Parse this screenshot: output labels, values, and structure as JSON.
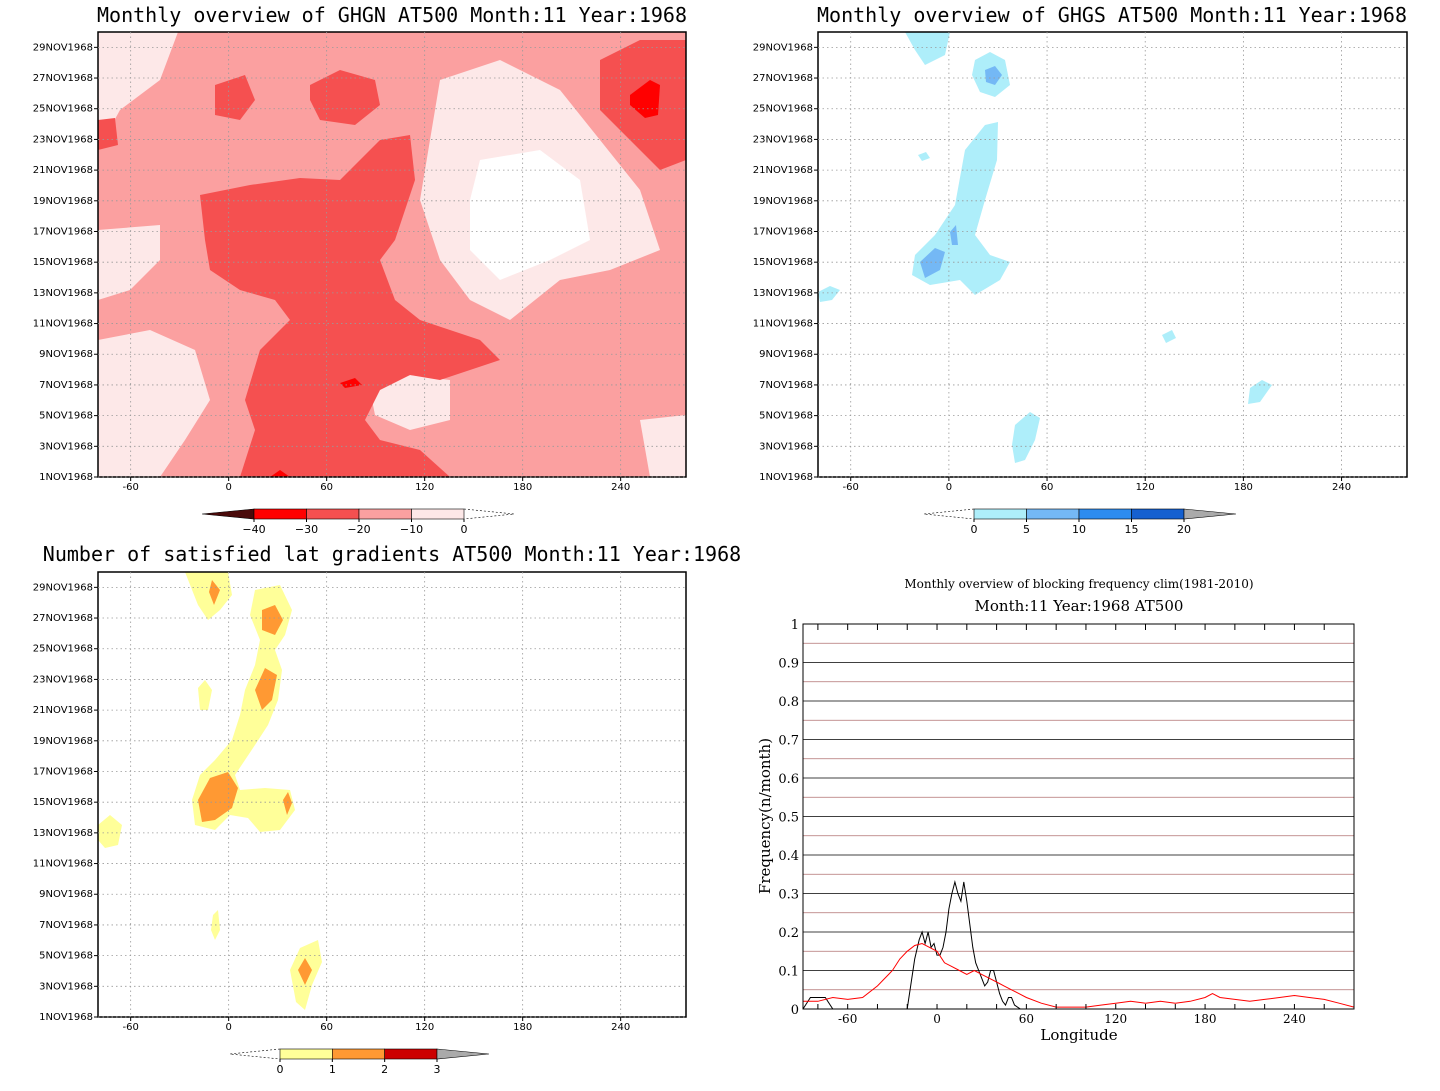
{
  "chart_data": [
    {
      "type": "heatmap",
      "title": "Monthly overview of GHGN AT500 Month:11 Year:1968",
      "x_ticks": [
        -60,
        0,
        60,
        120,
        180,
        240
      ],
      "y_ticks": [
        "1NOV1968",
        "3NOV1968",
        "5NOV1968",
        "7NOV1968",
        "9NOV1968",
        "11NOV1968",
        "13NOV1968",
        "15NOV1968",
        "17NOV1968",
        "19NOV1968",
        "21NOV1968",
        "23NOV1968",
        "25NOV1968",
        "27NOV1968",
        "29NOV1968"
      ],
      "xlim": [
        -80,
        280
      ],
      "ylim": [
        1,
        30
      ],
      "grid": true,
      "colorbar": {
        "labels": [
          "-40",
          "-30",
          "-20",
          "-10",
          "0"
        ],
        "colors": [
          "#4a0a0a",
          "#ff0000",
          "#f55050",
          "#fba0a0",
          "#fde8e8"
        ],
        "open_end_right": true
      }
    },
    {
      "type": "heatmap",
      "title": "Monthly overview of GHGS AT500 Month:11 Year:1968",
      "x_ticks": [
        -60,
        0,
        60,
        120,
        180,
        240
      ],
      "y_ticks": [
        "1NOV1968",
        "3NOV1968",
        "5NOV1968",
        "7NOV1968",
        "9NOV1968",
        "11NOV1968",
        "13NOV1968",
        "15NOV1968",
        "17NOV1968",
        "19NOV1968",
        "21NOV1968",
        "23NOV1968",
        "25NOV1968",
        "27NOV1968",
        "29NOV1968"
      ],
      "xlim": [
        -80,
        280
      ],
      "ylim": [
        1,
        30
      ],
      "grid": true,
      "colorbar": {
        "labels": [
          "0",
          "5",
          "10",
          "15",
          "20"
        ],
        "colors": [
          "#aeeefa",
          "#74b8f5",
          "#2d8cf0",
          "#1560d0",
          "#aaaaaa"
        ],
        "open_end_left": true
      }
    },
    {
      "type": "heatmap",
      "title": "Number of satisfied lat gradients AT500 Month:11 Year:1968",
      "x_ticks": [
        -60,
        0,
        60,
        120,
        180,
        240
      ],
      "y_ticks": [
        "1NOV1968",
        "3NOV1968",
        "5NOV1968",
        "7NOV1968",
        "9NOV1968",
        "11NOV1968",
        "13NOV1968",
        "15NOV1968",
        "17NOV1968",
        "19NOV1968",
        "21NOV1968",
        "23NOV1968",
        "25NOV1968",
        "27NOV1968",
        "29NOV1968"
      ],
      "xlim": [
        -80,
        280
      ],
      "ylim": [
        1,
        30
      ],
      "grid": true,
      "colorbar": {
        "labels": [
          "0",
          "1",
          "2",
          "3"
        ],
        "colors": [
          "#ffff99",
          "#ff9933",
          "#cc0000",
          "#aaaaaa"
        ],
        "open_end_left": true
      }
    },
    {
      "type": "line",
      "title": "Monthly overview of blocking frequency clim(1981-2010)",
      "subtitle": "Month:11 Year:1968  AT500",
      "xlabel": "Longitude",
      "ylabel": "Frequency(n/month)",
      "xlim": [
        -90,
        280
      ],
      "ylim": [
        0,
        1
      ],
      "x_ticks": [
        -60,
        0,
        60,
        120,
        180,
        240
      ],
      "y_ticks": [
        0,
        0.1,
        0.2,
        0.3,
        0.4,
        0.5,
        0.6,
        0.7,
        0.8,
        0.9,
        1
      ],
      "y_tick_labels": [
        "0",
        "0.1",
        "0.2",
        "0.3",
        "0.4",
        "0.5",
        "0.6",
        "0.7",
        "0.8",
        "0.9",
        "1"
      ],
      "series": [
        {
          "color": "#000000",
          "x": [
            -90,
            -85,
            -75,
            -70,
            -65,
            -20,
            -15,
            -12,
            -10,
            -8,
            -6,
            -4,
            -2,
            0,
            2,
            4,
            6,
            8,
            10,
            12,
            14,
            16,
            18,
            20,
            22,
            24,
            26,
            28,
            30,
            32,
            34,
            36,
            38,
            40,
            42,
            44,
            46,
            48,
            50,
            52,
            56,
            60
          ],
          "y": [
            0,
            0.03,
            0.03,
            0,
            0,
            0,
            0.13,
            0.18,
            0.2,
            0.17,
            0.2,
            0.16,
            0.17,
            0.14,
            0.14,
            0.16,
            0.2,
            0.26,
            0.3,
            0.33,
            0.3,
            0.28,
            0.33,
            0.28,
            0.22,
            0.16,
            0.12,
            0.1,
            0.08,
            0.06,
            0.07,
            0.1,
            0.1,
            0.07,
            0.04,
            0.02,
            0.01,
            0.03,
            0.03,
            0.01,
            0,
            0
          ]
        },
        {
          "color": "#ff0000",
          "x": [
            -90,
            -80,
            -70,
            -60,
            -50,
            -40,
            -30,
            -25,
            -20,
            -15,
            -10,
            -5,
            0,
            5,
            10,
            15,
            20,
            25,
            30,
            35,
            40,
            45,
            50,
            55,
            60,
            70,
            80,
            90,
            100,
            110,
            120,
            130,
            140,
            150,
            160,
            170,
            180,
            185,
            190,
            200,
            210,
            220,
            230,
            240,
            250,
            260,
            270,
            280
          ],
          "y": [
            0.02,
            0.02,
            0.03,
            0.025,
            0.03,
            0.06,
            0.1,
            0.13,
            0.15,
            0.165,
            0.17,
            0.16,
            0.15,
            0.12,
            0.11,
            0.1,
            0.09,
            0.1,
            0.09,
            0.08,
            0.07,
            0.06,
            0.05,
            0.04,
            0.03,
            0.015,
            0.005,
            0.005,
            0.005,
            0.01,
            0.015,
            0.02,
            0.015,
            0.02,
            0.015,
            0.02,
            0.03,
            0.04,
            0.03,
            0.025,
            0.02,
            0.025,
            0.03,
            0.035,
            0.03,
            0.025,
            0.015,
            0.005
          ]
        }
      ]
    }
  ]
}
